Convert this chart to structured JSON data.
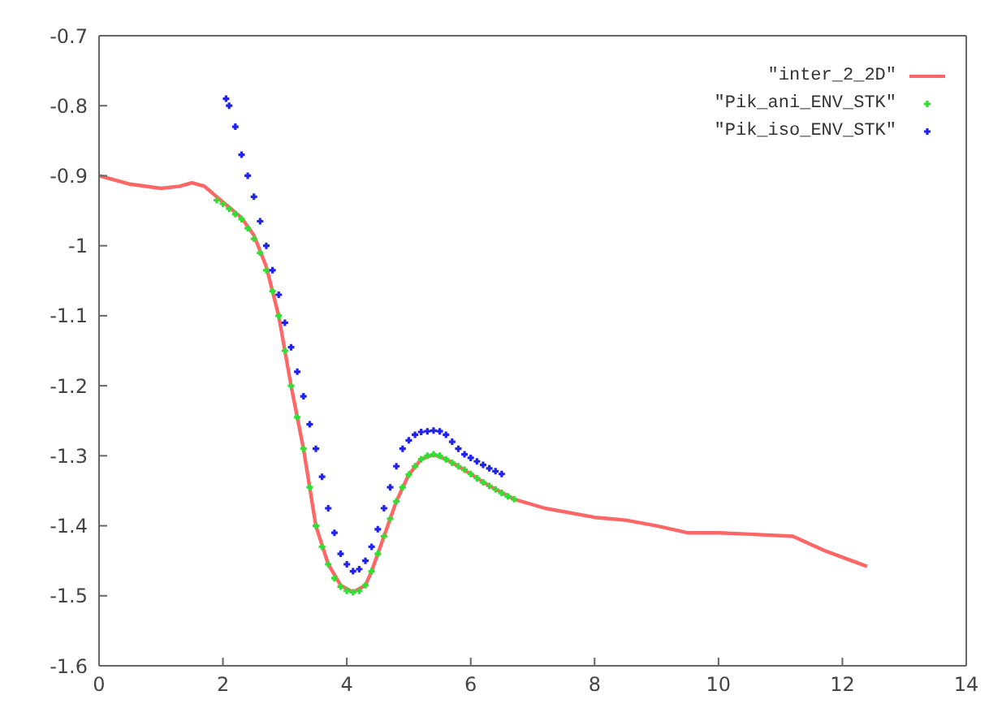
{
  "chart_data": {
    "type": "line",
    "xlim": [
      0,
      14
    ],
    "xticks": [
      0,
      2,
      4,
      6,
      8,
      10,
      12,
      14
    ],
    "ylim": [
      -1.6,
      -0.7
    ],
    "yticks": [
      -1.6,
      -1.5,
      -1.4,
      -1.3,
      -1.2,
      -1.1,
      -1,
      -0.9,
      -0.8,
      -0.7
    ],
    "legend": "top right",
    "series": [
      {
        "name": "\"inter_2_2D\"",
        "marker": "none",
        "color": "#ff6666",
        "x": [
          0,
          0.5,
          1,
          1.3,
          1.5,
          1.7,
          1.9,
          2.1,
          2.3,
          2.5,
          2.7,
          2.9,
          3.1,
          3.3,
          3.5,
          3.7,
          3.9,
          4.1,
          4.3,
          4.4,
          4.6,
          4.8,
          5,
          5.2,
          5.4,
          5.6,
          5.8,
          6,
          6.3,
          6.7,
          7.2,
          8,
          8.5,
          9,
          9.5,
          10,
          10.5,
          11.2,
          11.7,
          12,
          12.4
        ],
        "values": [
          -0.9,
          -0.912,
          -0.918,
          -0.915,
          -0.91,
          -0.915,
          -0.93,
          -0.945,
          -0.96,
          -0.985,
          -1.03,
          -1.1,
          -1.2,
          -1.29,
          -1.4,
          -1.455,
          -1.485,
          -1.495,
          -1.485,
          -1.465,
          -1.415,
          -1.365,
          -1.327,
          -1.305,
          -1.298,
          -1.305,
          -1.315,
          -1.326,
          -1.343,
          -1.362,
          -1.375,
          -1.388,
          -1.392,
          -1.4,
          -1.41,
          -1.41,
          -1.412,
          -1.415,
          -1.435,
          -1.445,
          -1.458
        ]
      },
      {
        "name": "\"Pik_ani_ENV_STK\"",
        "type": "scatter",
        "marker": "cross",
        "color": "#33dd33",
        "x": [
          1.9,
          2,
          2.1,
          2.2,
          2.3,
          2.4,
          2.5,
          2.6,
          2.7,
          2.8,
          2.9,
          3,
          3.1,
          3.2,
          3.3,
          3.4,
          3.5,
          3.6,
          3.7,
          3.8,
          3.9,
          4,
          4.1,
          4.2,
          4.3,
          4.4,
          4.5,
          4.6,
          4.7,
          4.8,
          4.9,
          5,
          5.1,
          5.2,
          5.3,
          5.4,
          5.5,
          5.6,
          5.7,
          5.8,
          5.9,
          6,
          6.1,
          6.2,
          6.3,
          6.4,
          6.5,
          6.6,
          6.7
        ],
        "values": [
          -0.935,
          -0.94,
          -0.947,
          -0.955,
          -0.962,
          -0.975,
          -0.99,
          -1.01,
          -1.035,
          -1.065,
          -1.1,
          -1.15,
          -1.2,
          -1.245,
          -1.29,
          -1.345,
          -1.4,
          -1.43,
          -1.455,
          -1.475,
          -1.487,
          -1.493,
          -1.495,
          -1.493,
          -1.485,
          -1.465,
          -1.44,
          -1.415,
          -1.39,
          -1.365,
          -1.345,
          -1.327,
          -1.315,
          -1.305,
          -1.3,
          -1.298,
          -1.3,
          -1.305,
          -1.31,
          -1.315,
          -1.32,
          -1.326,
          -1.332,
          -1.338,
          -1.343,
          -1.348,
          -1.353,
          -1.358,
          -1.362
        ]
      },
      {
        "name": "\"Pik_iso_ENV_STK\"",
        "type": "scatter",
        "marker": "cross",
        "color": "#2222ee",
        "x": [
          2.05,
          2.1,
          2.2,
          2.3,
          2.4,
          2.5,
          2.6,
          2.7,
          2.8,
          2.9,
          3,
          3.1,
          3.2,
          3.3,
          3.4,
          3.5,
          3.6,
          3.7,
          3.8,
          3.9,
          4,
          4.1,
          4.2,
          4.3,
          4.4,
          4.5,
          4.6,
          4.7,
          4.8,
          4.9,
          5,
          5.1,
          5.2,
          5.3,
          5.4,
          5.5,
          5.6,
          5.7,
          5.8,
          5.9,
          6,
          6.1,
          6.2,
          6.3,
          6.4,
          6.5
        ],
        "values": [
          -0.79,
          -0.8,
          -0.83,
          -0.87,
          -0.9,
          -0.93,
          -0.965,
          -1,
          -1.035,
          -1.07,
          -1.11,
          -1.145,
          -1.18,
          -1.215,
          -1.255,
          -1.29,
          -1.33,
          -1.375,
          -1.41,
          -1.44,
          -1.455,
          -1.465,
          -1.462,
          -1.45,
          -1.43,
          -1.405,
          -1.375,
          -1.345,
          -1.315,
          -1.29,
          -1.278,
          -1.27,
          -1.266,
          -1.265,
          -1.264,
          -1.265,
          -1.27,
          -1.28,
          -1.29,
          -1.298,
          -1.303,
          -1.308,
          -1.313,
          -1.318,
          -1.322,
          -1.326
        ]
      }
    ]
  }
}
